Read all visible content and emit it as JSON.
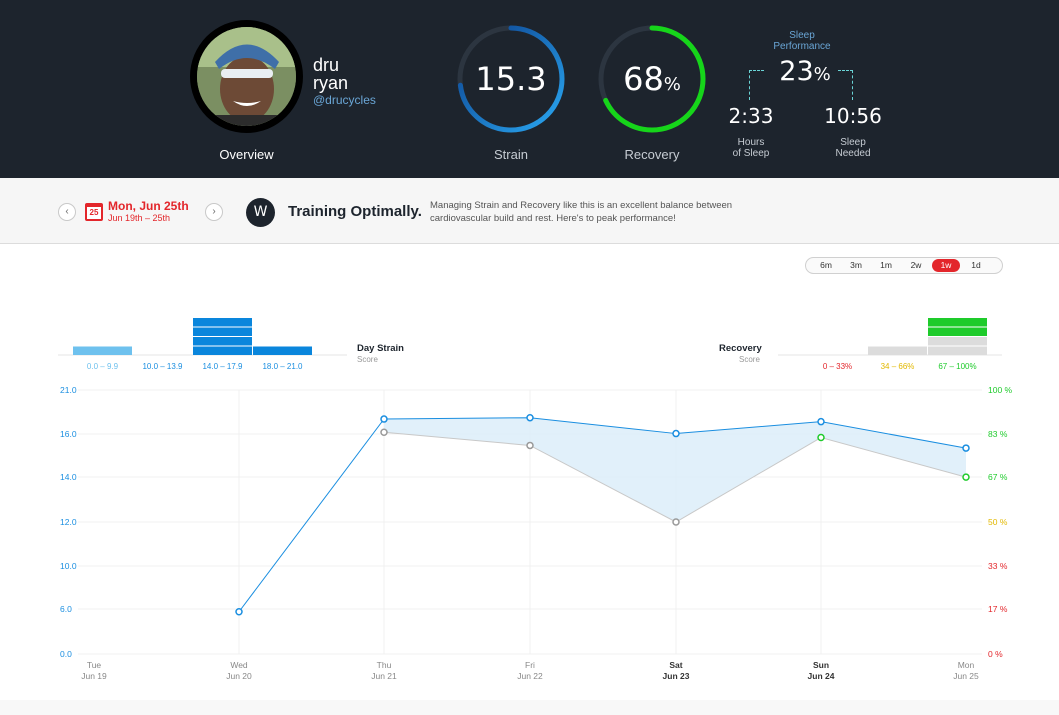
{
  "profile": {
    "first_name": "dru",
    "last_name": "ryan",
    "handle": "@drucycles",
    "tab_label": "Overview"
  },
  "metrics": {
    "strain": {
      "value": "15.3",
      "label": "Strain",
      "fraction": 0.729
    },
    "recovery": {
      "value": "68",
      "unit": "%",
      "label": "Recovery",
      "fraction": 0.68
    },
    "sleep": {
      "title_line1": "Sleep",
      "title_line2": "Performance",
      "value": "23",
      "unit": "%",
      "hours": "2:33",
      "hours_label1": "Hours",
      "hours_label2": "of Sleep",
      "needed": "10:56",
      "needed_label1": "Sleep",
      "needed_label2": "Needed"
    }
  },
  "summary": {
    "prev_icon": "chevron-left-icon",
    "next_icon": "chevron-right-icon",
    "calendar_day": "25",
    "date": "Mon, Jun 25th",
    "range": "Jun 19th – 25th",
    "logo_letter": "W",
    "status_title": "Training Optimally.",
    "status_desc": "Managing Strain and Recovery like this is an excellent balance between cardiovascular build and rest. Here's to peak performance!"
  },
  "range_selector": {
    "options": [
      "6m",
      "3m",
      "1m",
      "2w",
      "1w",
      "1d"
    ],
    "active": "1w"
  },
  "strain_histogram": {
    "name": "Day Strain",
    "sub": "Score",
    "bins": [
      {
        "label": "0.0 – 9.9",
        "count": 1,
        "color": "#6ec1ee"
      },
      {
        "label": "10.0 – 13.9",
        "count": 0,
        "color": "#1a8ee0"
      },
      {
        "label": "14.0 – 17.9",
        "count": 4,
        "color": "#0a86dc"
      },
      {
        "label": "18.0 – 21.0",
        "count": 1,
        "color": "#0a86dc"
      }
    ]
  },
  "recovery_histogram": {
    "name": "Recovery",
    "sub": "Score",
    "bins": [
      {
        "label": "0 – 33%",
        "count": 0,
        "color": "#e3262b"
      },
      {
        "label": "34 – 66%",
        "count": 1,
        "color": "#e2b800"
      },
      {
        "label": "67 – 100%",
        "count": 4,
        "color": "#1ecb2b"
      }
    ]
  },
  "chart_data": {
    "type": "line",
    "x": [
      {
        "day": "Tue",
        "date": "Jun 19",
        "bold": false
      },
      {
        "day": "Wed",
        "date": "Jun 20",
        "bold": false
      },
      {
        "day": "Thu",
        "date": "Jun 21",
        "bold": false
      },
      {
        "day": "Fri",
        "date": "Jun 22",
        "bold": false
      },
      {
        "day": "Sat",
        "date": "Jun 23",
        "bold": true
      },
      {
        "day": "Sun",
        "date": "Jun 24",
        "bold": true
      },
      {
        "day": "Mon",
        "date": "Jun 25",
        "bold": false
      }
    ],
    "left_ticks": [
      "21.0",
      "16.0",
      "14.0",
      "12.0",
      "10.0",
      "6.0",
      "0.0"
    ],
    "right_ticks": [
      {
        "label": "100 %",
        "color": "#1ecb2b"
      },
      {
        "label": "83 %",
        "color": "#1ecb2b"
      },
      {
        "label": "67 %",
        "color": "#1ecb2b"
      },
      {
        "label": "50 %",
        "color": "#e2b800"
      },
      {
        "label": "33 %",
        "color": "#e3262b"
      },
      {
        "label": "17 %",
        "color": "#e3262b"
      },
      {
        "label": "0 %",
        "color": "#e3262b"
      }
    ],
    "series": [
      {
        "name": "Strain",
        "color": "#1a8ee0",
        "y_level": [
          null,
          0.16,
          0.89,
          0.895,
          0.835,
          0.88,
          0.78
        ]
      },
      {
        "name": "Recovery",
        "color": "#999999",
        "y_level": [
          null,
          null,
          0.84,
          0.79,
          0.5,
          0.82,
          0.67
        ],
        "point_colors": [
          null,
          null,
          "#999999",
          "#999999",
          "#999999",
          "#1ecb2b",
          "#1ecb2b"
        ]
      }
    ],
    "grid": true
  }
}
